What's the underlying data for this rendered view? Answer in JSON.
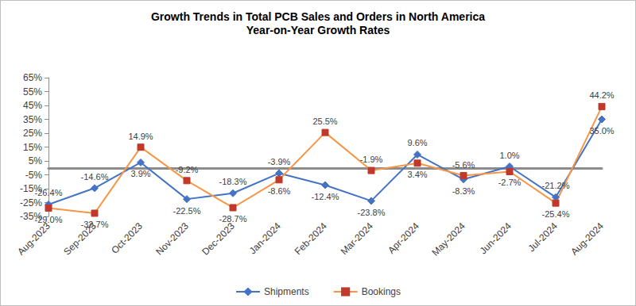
{
  "chart_data": {
    "type": "line",
    "title": "Growth Trends in Total PCB Sales and Orders in North America",
    "subtitle": "Year-on-Year Growth Rates",
    "categories": [
      "Aug-2023",
      "Sep-2023",
      "Oct-2023",
      "Nov-2023",
      "Dec-2023",
      "Jan-2024",
      "Feb-2024",
      "Mar-2024",
      "Apr-2024",
      "May-2024",
      "Jun-2024",
      "Jul-2024",
      "Aug-2024"
    ],
    "series": [
      {
        "name": "Shipments",
        "color": "#4472c4",
        "marker": "diamond",
        "values": [
          -26.4,
          -14.6,
          3.9,
          -22.5,
          -18.3,
          -3.9,
          -12.4,
          -23.8,
          9.6,
          -8.3,
          1.0,
          -21.2,
          35.0
        ],
        "value_labels": [
          "-26.4%",
          "-14.6%",
          "3.9%",
          "-22.5%",
          "-18.3%",
          "-3.9%",
          "-12.4%",
          "-23.8%",
          "9.6%",
          "-8.3%",
          "1.0%",
          "-21.2%",
          "35.0%"
        ]
      },
      {
        "name": "Bookings",
        "color": "#f79646",
        "marker": "square",
        "values": [
          -29.0,
          -32.7,
          14.9,
          -9.2,
          -28.7,
          -8.6,
          25.5,
          -1.9,
          3.4,
          -5.6,
          -2.7,
          -25.4,
          44.2
        ],
        "value_labels": [
          "-29.0%",
          "-32.7%",
          "14.9%",
          "-9.2%",
          "-28.7%",
          "-8.6%",
          "25.5%",
          "-1.9%",
          "3.4%",
          "-5.6%",
          "-2.7%",
          "-25.4%",
          "44.2%"
        ]
      }
    ],
    "ylim": [
      -35,
      65
    ],
    "yticks": [
      {
        "value": -35,
        "label": "-35%"
      },
      {
        "value": -25,
        "label": "-25%"
      },
      {
        "value": -15,
        "label": "-15%"
      },
      {
        "value": -5,
        "label": "-5%"
      },
      {
        "value": 5,
        "label": "5%"
      },
      {
        "value": 15,
        "label": "15%"
      },
      {
        "value": 25,
        "label": "25%"
      },
      {
        "value": 35,
        "label": "35%"
      },
      {
        "value": 45,
        "label": "45%"
      },
      {
        "value": 55,
        "label": "55%"
      },
      {
        "value": 65,
        "label": "65%"
      }
    ],
    "grid": false,
    "legend": "bottom",
    "data_labels": true
  }
}
